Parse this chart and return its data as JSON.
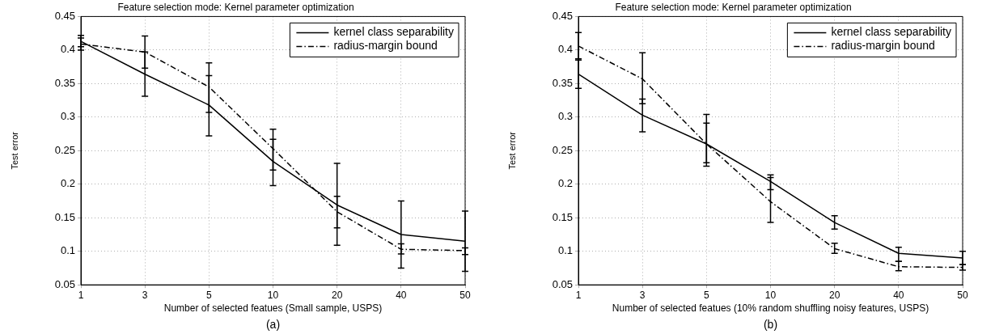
{
  "chart_data": [
    {
      "type": "line",
      "title": "Feature selection mode: Kernel parameter optimization",
      "xlabel": "Number of selected featues (Small sample, USPS)",
      "ylabel": "Test error",
      "categories": [
        "1",
        "3",
        "5",
        "10",
        "20",
        "40",
        "50"
      ],
      "ylim": [
        0.05,
        0.45
      ],
      "yticks": [
        0.05,
        0.1,
        0.15,
        0.2,
        0.25,
        0.3,
        0.35,
        0.4,
        0.45
      ],
      "grid": true,
      "legend": "top right",
      "marker": "none",
      "annotations": [
        "(a)"
      ],
      "series": [
        {
          "name": "kernel class separability",
          "color": "#000000",
          "line_style": "solid",
          "values": [
            0.413,
            0.364,
            0.318,
            0.234,
            0.169,
            0.125,
            0.115
          ],
          "errors": [
            [
              0.405,
              0.422
            ],
            [
              0.331,
              0.397
            ],
            [
              0.272,
              0.362
            ],
            [
              0.198,
              0.267
            ],
            [
              0.109,
              0.231
            ],
            [
              0.075,
              0.175
            ],
            [
              0.07,
              0.16
            ]
          ]
        },
        {
          "name": "radius-margin bound",
          "color": "#000000",
          "line_style": "dashed",
          "values": [
            0.409,
            0.397,
            0.345,
            0.253,
            0.159,
            0.103,
            0.101
          ],
          "errors": [
            [
              0.4,
              0.418
            ],
            [
              0.373,
              0.421
            ],
            [
              0.307,
              0.381
            ],
            [
              0.221,
              0.282
            ],
            [
              0.135,
              0.182
            ],
            [
              0.096,
              0.111
            ],
            [
              0.095,
              0.105
            ]
          ]
        }
      ]
    },
    {
      "type": "line",
      "title": "Feature selection mode: Kernel parameter optimization",
      "xlabel": "Number of selected featues (10% random shuffling noisy features, USPS)",
      "ylabel": "Test error",
      "categories": [
        "1",
        "3",
        "5",
        "10",
        "20",
        "40",
        "50"
      ],
      "ylim": [
        0.05,
        0.45
      ],
      "yticks": [
        0.05,
        0.1,
        0.15,
        0.2,
        0.25,
        0.3,
        0.35,
        0.4,
        0.45
      ],
      "grid": true,
      "legend": "top right",
      "marker": "none",
      "annotations": [
        "(b)"
      ],
      "series": [
        {
          "name": "kernel class separability",
          "color": "#000000",
          "line_style": "solid",
          "values": [
            0.364,
            0.303,
            0.26,
            0.204,
            0.143,
            0.097,
            0.09
          ],
          "errors": [
            [
              0.343,
              0.385
            ],
            [
              0.278,
              0.327
            ],
            [
              0.227,
              0.291
            ],
            [
              0.192,
              0.214
            ],
            [
              0.133,
              0.153
            ],
            [
              0.085,
              0.106
            ],
            [
              0.08,
              0.1
            ]
          ]
        },
        {
          "name": "radius-margin bound",
          "color": "#000000",
          "line_style": "dashed",
          "values": [
            0.406,
            0.357,
            0.26,
            0.174,
            0.104,
            0.077,
            0.076
          ],
          "errors": [
            [
              0.387,
              0.426
            ],
            [
              0.32,
              0.396
            ],
            [
              0.232,
              0.304
            ],
            [
              0.143,
              0.21
            ],
            [
              0.097,
              0.112
            ],
            [
              0.071,
              0.085
            ],
            [
              0.072,
              0.08
            ]
          ]
        }
      ]
    }
  ]
}
